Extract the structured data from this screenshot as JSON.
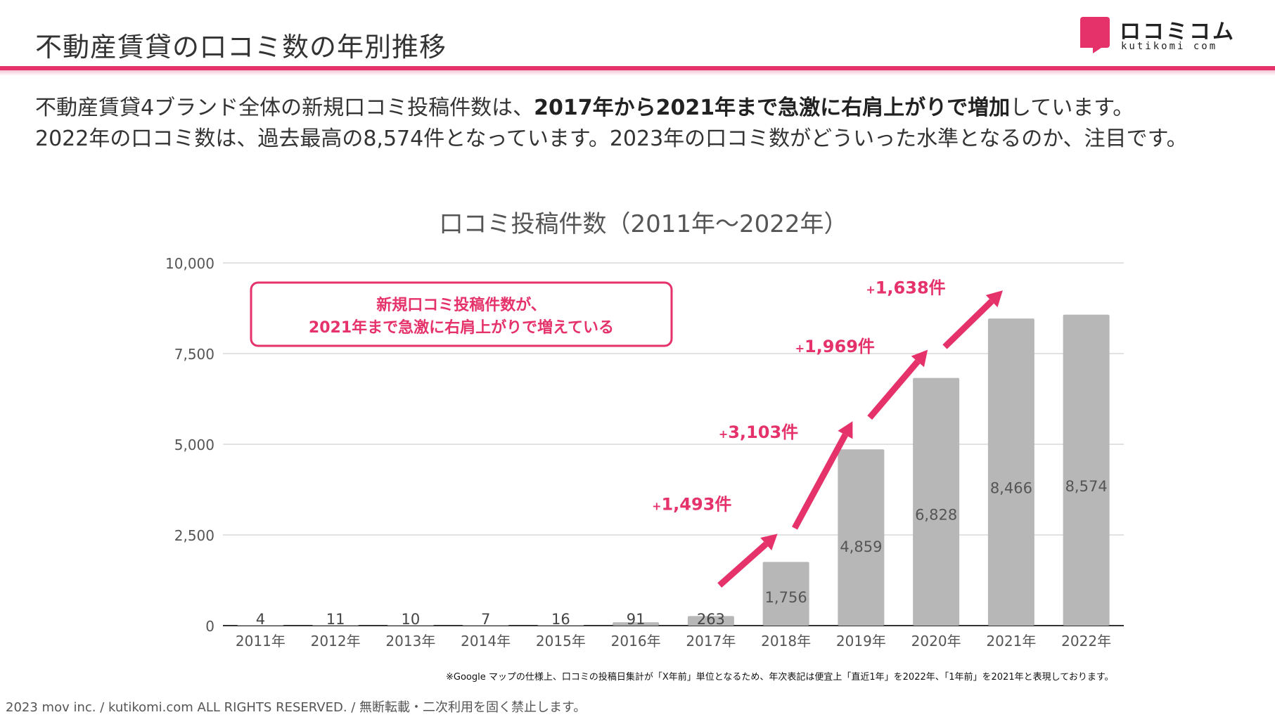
{
  "header": {
    "title": "不動産賃貸の口コミ数の年別推移",
    "logo_text": "ロコミコム",
    "logo_sub": "kutikomi com"
  },
  "intro": {
    "line1_a": "不動産賃貸4ブランド全体の新規口コミ投稿件数は、",
    "line1_b": "2017年から2021年まで急激に右肩上がりで増加",
    "line1_c": "しています。",
    "line2": "2022年の口コミ数は、過去最高の8,574件となっています。2023年の口コミ数がどういった水準となるのか、注目です。"
  },
  "callout": {
    "line1": "新規口コミ投稿件数が、",
    "line2": "2021年まで急激に右肩上がりで増えている"
  },
  "increments": [
    {
      "plus": "+",
      "value": "1,493件"
    },
    {
      "plus": "+",
      "value": "3,103件"
    },
    {
      "plus": "+",
      "value": "1,969件"
    },
    {
      "plus": "+",
      "value": "1,638件"
    }
  ],
  "footnote": "※Google マップの仕様上、口コミの投稿日集計が「X年前」単位となるため、年次表記は便宜上「直近1年」を2022年、「1年前」を2021年と表現しております。",
  "copyright": "2023 mov inc. / kutikomi.com ALL RIGHTS RESERVED. / 無断転載・二次利用を固く禁止します。",
  "colors": {
    "accent": "#e5326b",
    "bar": "#b7b7b7",
    "grid": "#d9d9d9",
    "axis": "#333333"
  },
  "chart_data": {
    "type": "bar",
    "title": "口コミ投稿件数（2011年〜2022年）",
    "categories": [
      "2011年",
      "2012年",
      "2013年",
      "2014年",
      "2015年",
      "2016年",
      "2017年",
      "2018年",
      "2019年",
      "2020年",
      "2021年",
      "2022年"
    ],
    "values": [
      4,
      11,
      10,
      7,
      16,
      91,
      263,
      1756,
      4859,
      6828,
      8466,
      8574
    ],
    "data_labels": [
      "4",
      "11",
      "10",
      "7",
      "16",
      "91",
      "263",
      "1,756",
      "4,859",
      "6,828",
      "8,466",
      "8,574"
    ],
    "yticks": [
      0,
      2500,
      5000,
      7500,
      10000
    ],
    "ytick_labels": [
      "0",
      "2,500",
      "5,000",
      "7,500",
      "10,000"
    ],
    "ylim": [
      0,
      10000
    ],
    "xlabel": "",
    "ylabel": "",
    "grid": true
  }
}
